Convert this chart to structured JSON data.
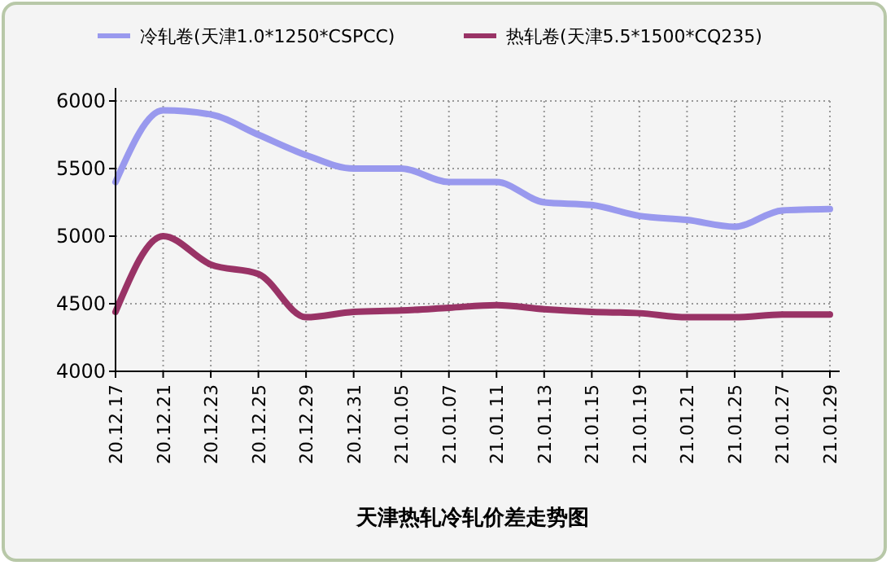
{
  "chart_data": {
    "type": "line",
    "title": "天津热轧冷轧价差走势图",
    "categories": [
      "20.12.17",
      "20.12.21",
      "20.12.23",
      "20.12.25",
      "20.12.29",
      "20.12.31",
      "21.01.05",
      "21.01.07",
      "21.01.11",
      "21.01.13",
      "21.01.15",
      "21.01.19",
      "21.01.21",
      "21.01.25",
      "21.01.27",
      "21.01.29"
    ],
    "series": [
      {
        "name": "冷轧卷(天津1.0*1250*CSPCC)",
        "color": "#9999ee",
        "values": [
          5400,
          5930,
          5900,
          5750,
          5600,
          5500,
          5500,
          5400,
          5400,
          5250,
          5230,
          5150,
          5120,
          5070,
          5190,
          5200
        ]
      },
      {
        "name": "热轧卷(天津5.5*1500*CQ235)",
        "color": "#993366",
        "values": [
          4440,
          5000,
          4790,
          4720,
          4400,
          4440,
          4450,
          4470,
          4490,
          4460,
          4440,
          4430,
          4400,
          4400,
          4420,
          4420
        ]
      }
    ],
    "ylim": [
      4000,
      6000
    ],
    "yticks": [
      4000,
      4500,
      5000,
      5500,
      6000
    ],
    "grid": true,
    "legend": "top",
    "marker": "none",
    "line_style": "solid"
  }
}
